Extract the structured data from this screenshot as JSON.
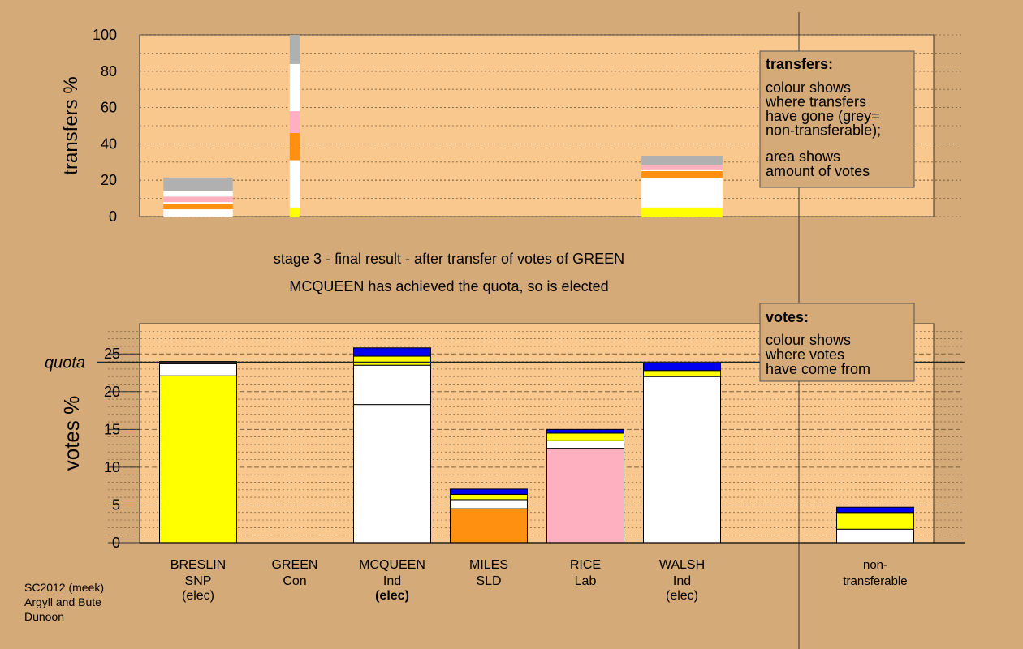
{
  "colors": {
    "page_bg": "#d4aa78",
    "plot_bg": "#f9c88e",
    "grid": "#7a6040",
    "outline": "#000000",
    "snp": "#ffff00",
    "con": "#0000ee",
    "ind": "#ffffff",
    "sld": "#ff9010",
    "lab": "#ffb0c0",
    "nontransferable": "#b0b0b0",
    "note_bg": "#d4aa78",
    "note_border": "#555555"
  },
  "chart_data": [
    {
      "type": "bar",
      "stacked": true,
      "ylabel": "transfers %",
      "ylim": [
        0,
        100
      ],
      "yticks": [
        0,
        20,
        40,
        60,
        80,
        100
      ],
      "grid": true,
      "bars": [
        {
          "column": "BRESLIN",
          "width": 0.9,
          "segments": [
            {
              "party": "ind",
              "from": 0,
              "to": 4
            },
            {
              "party": "sld",
              "from": 4,
              "to": 7
            },
            {
              "party": "ind",
              "from": 7,
              "to": 8
            },
            {
              "party": "lab",
              "from": 8,
              "to": 11
            },
            {
              "party": "ind",
              "from": 11,
              "to": 14
            },
            {
              "party": "nontransferable",
              "from": 14,
              "to": 21.5
            }
          ]
        },
        {
          "column": "GREEN",
          "width": 0.13,
          "segments": [
            {
              "party": "snp",
              "from": 0,
              "to": 5
            },
            {
              "party": "ind",
              "from": 5,
              "to": 31
            },
            {
              "party": "sld",
              "from": 31,
              "to": 46
            },
            {
              "party": "lab",
              "from": 46,
              "to": 58
            },
            {
              "party": "ind",
              "from": 58,
              "to": 84
            },
            {
              "party": "nontransferable",
              "from": 84,
              "to": 100
            }
          ]
        },
        {
          "column": "WALSH",
          "width": 1.05,
          "segments": [
            {
              "party": "snp",
              "from": 0,
              "to": 5
            },
            {
              "party": "ind",
              "from": 5,
              "to": 21
            },
            {
              "party": "sld",
              "from": 21,
              "to": 25
            },
            {
              "party": "ind",
              "from": 25,
              "to": 26
            },
            {
              "party": "lab",
              "from": 26,
              "to": 28.5
            },
            {
              "party": "nontransferable",
              "from": 28.5,
              "to": 33.5
            }
          ]
        }
      ]
    },
    {
      "type": "bar",
      "stacked": true,
      "ylabel": "votes %",
      "ylim": [
        0,
        29
      ],
      "yticks": [
        0,
        5,
        10,
        15,
        20,
        25
      ],
      "grid": true,
      "quota": 23.9,
      "bars": [
        {
          "column": "BRESLIN",
          "segments": [
            {
              "party": "snp",
              "from": 0,
              "to": 22.1
            },
            {
              "party": "ind",
              "from": 22.1,
              "to": 23.7
            },
            {
              "party": "con",
              "from": 23.7,
              "to": 24.0
            }
          ]
        },
        {
          "column": "MCQUEEN",
          "segments": [
            {
              "party": "ind",
              "from": 0,
              "to": 18.3
            },
            {
              "party": "ind",
              "from": 18.3,
              "to": 23.5
            },
            {
              "party": "snp",
              "from": 23.5,
              "to": 24.7
            },
            {
              "party": "con",
              "from": 24.7,
              "to": 25.8
            }
          ]
        },
        {
          "column": "MILES",
          "segments": [
            {
              "party": "sld",
              "from": 0,
              "to": 4.5
            },
            {
              "party": "ind",
              "from": 4.5,
              "to": 5.7
            },
            {
              "party": "snp",
              "from": 5.7,
              "to": 6.4
            },
            {
              "party": "con",
              "from": 6.4,
              "to": 7.1
            }
          ]
        },
        {
          "column": "RICE",
          "segments": [
            {
              "party": "lab",
              "from": 0,
              "to": 12.5
            },
            {
              "party": "ind",
              "from": 12.5,
              "to": 13.5
            },
            {
              "party": "snp",
              "from": 13.5,
              "to": 14.5
            },
            {
              "party": "con",
              "from": 14.5,
              "to": 15.0
            }
          ]
        },
        {
          "column": "WALSH",
          "segments": [
            {
              "party": "ind",
              "from": 0,
              "to": 22.0
            },
            {
              "party": "snp",
              "from": 22.0,
              "to": 22.8
            },
            {
              "party": "con",
              "from": 22.8,
              "to": 23.9
            }
          ]
        },
        {
          "column": "NONTRANSFERABLE",
          "segments": [
            {
              "party": "ind",
              "from": 0,
              "to": 1.8
            },
            {
              "party": "snp",
              "from": 1.8,
              "to": 4.0
            },
            {
              "party": "con",
              "from": 4.0,
              "to": 4.7
            }
          ]
        }
      ]
    }
  ],
  "quota_label": "quota",
  "title_line1": "stage 3 - final result - after transfer of votes of GREEN",
  "title_line2": "MCQUEEN has achieved the quota, so is elected",
  "candidates": [
    {
      "key": "BRESLIN",
      "name": "BRESLIN",
      "party": "SNP",
      "status": "(elec)",
      "status_bold": false
    },
    {
      "key": "GREEN",
      "name": "GREEN",
      "party": "Con",
      "status": "",
      "status_bold": false
    },
    {
      "key": "MCQUEEN",
      "name": "MCQUEEN",
      "party": "Ind",
      "status": "(elec)",
      "status_bold": true
    },
    {
      "key": "MILES",
      "name": "MILES",
      "party": "SLD",
      "status": "",
      "status_bold": false
    },
    {
      "key": "RICE",
      "name": "RICE",
      "party": "Lab",
      "status": "",
      "status_bold": false
    },
    {
      "key": "WALSH",
      "name": "WALSH",
      "party": "Ind",
      "status": "(elec)",
      "status_bold": false
    },
    {
      "key": "NONTRANSFERABLE",
      "name": "non-",
      "party": "transferable",
      "status": "",
      "status_bold": false
    }
  ],
  "transfers_note": {
    "heading": "transfers:",
    "lines": [
      "colour shows",
      "where transfers",
      "have gone (grey=",
      "non-transferable);"
    ],
    "lines2": [
      "area shows",
      "amount of votes"
    ]
  },
  "votes_note": {
    "heading": "votes:",
    "lines": [
      "colour shows",
      "where votes",
      "have come from"
    ]
  },
  "footer": [
    "SC2012 (meek)",
    "Argyll and Bute",
    "Dunoon"
  ]
}
